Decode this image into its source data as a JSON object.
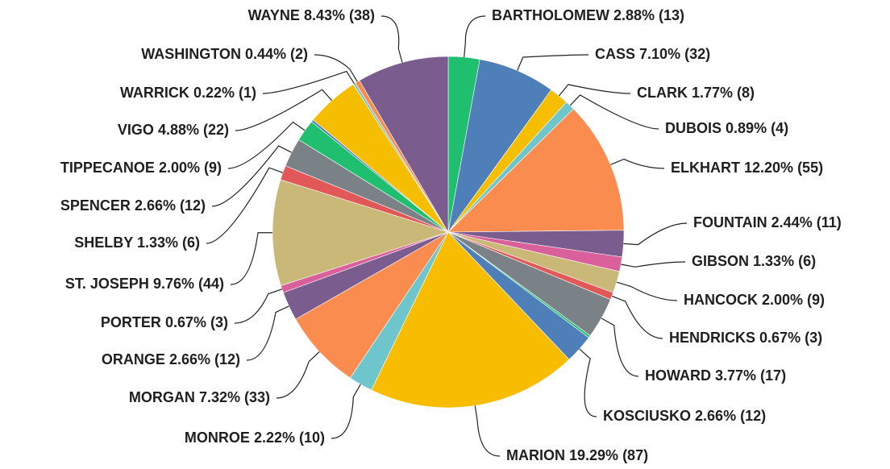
{
  "chart_data": {
    "type": "pie",
    "categories": [
      "BARTHOLOMEW",
      "CASS",
      "CLARK",
      "DUBOIS",
      "ELKHART",
      "FOUNTAIN",
      "GIBSON",
      "HANCOCK",
      "HENDRICKS",
      "HOWARD",
      null,
      "KOSCIUSKO",
      "MARION",
      "MONROE",
      "MORGAN",
      "ORANGE",
      "PORTER",
      "ST. JOSEPH",
      "SHELBY",
      "SPENCER",
      "TIPPECANOE",
      null,
      "VIGO",
      "WARRICK",
      "WASHINGTON",
      "WAYNE"
    ],
    "values": [
      2.88,
      7.1,
      1.77,
      0.89,
      12.2,
      2.44,
      1.33,
      2.0,
      0.67,
      3.77,
      0.22,
      2.66,
      19.29,
      2.22,
      7.32,
      2.66,
      0.67,
      9.76,
      1.33,
      2.66,
      2.0,
      0.22,
      4.88,
      0.22,
      0.44,
      8.43
    ],
    "value_labels": [
      "2.88% (13)",
      "7.10% (32)",
      "1.77% (8)",
      "0.89% (4)",
      "12.20% (55)",
      "2.44% (11)",
      "1.33% (6)",
      "2.00% (9)",
      "0.67% (3)",
      "3.77% (17)",
      null,
      "2.66% (12)",
      "19.29% (87)",
      "2.22% (10)",
      "7.32% (33)",
      "2.66% (12)",
      "0.67% (3)",
      "9.76% (44)",
      "1.33% (6)",
      "2.66% (12)",
      "2.00% (9)",
      null,
      "4.88% (22)",
      "0.22% (1)",
      "0.44% (2)",
      "8.43% (38)"
    ],
    "colors": [
      "#1fbf6f",
      "#4f7fb8",
      "#f5be00",
      "#6ec6cc",
      "#fb8c4f",
      "#7a5c8f",
      "#d9609a",
      "#c9b878",
      "#e05858",
      "#7a8288",
      "#1fbf6f",
      "#4f7fb8",
      "#f8bc00",
      "#6ec6cc",
      "#fb8c4f",
      "#7a5c8f",
      "#d9609a",
      "#c9b878",
      "#e05858",
      "#7a8288",
      "#1fbf6f",
      "#4f7fb8",
      "#f5be00",
      "#6ec6cc",
      "#fb8c4f",
      "#7a5c8f"
    ]
  }
}
